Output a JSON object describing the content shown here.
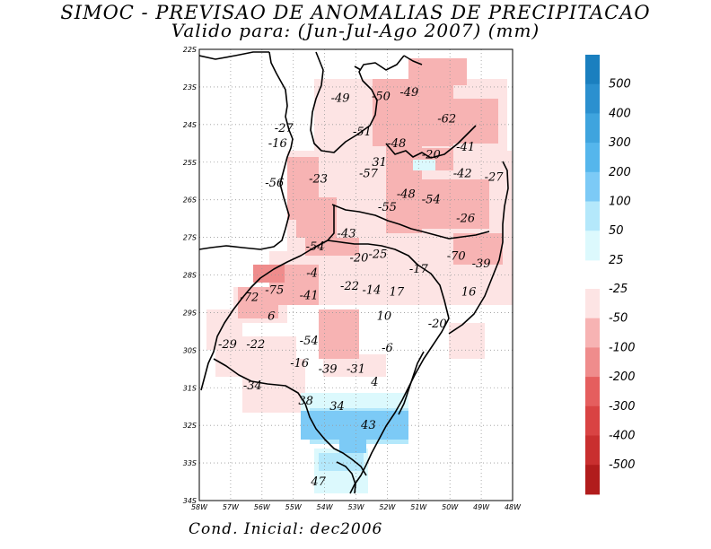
{
  "title_line1": "SIMOC - PREVISAO DE ANOMALIAS DE PRECIPITACAO",
  "title_line2": "Valido para: (Jun-Jul-Ago 2007) (mm)",
  "footer": "Cond. Inicial: dec2006",
  "map": {
    "lon_range": [
      -58,
      -48
    ],
    "lat_range": [
      -34,
      -22
    ],
    "lon_ticks": [
      "58W",
      "57W",
      "56W",
      "55W",
      "54W",
      "53W",
      "52W",
      "51W",
      "50W",
      "49W",
      "48W"
    ],
    "lat_ticks": [
      "22S",
      "23S",
      "24S",
      "25S",
      "26S",
      "27S",
      "28S",
      "29S",
      "30S",
      "31S",
      "32S",
      "33S",
      "34S"
    ],
    "grid": "dotted"
  },
  "legend": {
    "positive": [
      {
        "label": "500",
        "color": "#1a7fbf"
      },
      {
        "label": "400",
        "color": "#2b90cf"
      },
      {
        "label": "300",
        "color": "#3fa4de"
      },
      {
        "label": "200",
        "color": "#55b6ec"
      },
      {
        "label": "100",
        "color": "#7ccaf6"
      },
      {
        "label": "50",
        "color": "#b4e8fb"
      },
      {
        "label": "25",
        "color": "#dcf9fd"
      }
    ],
    "negative": [
      {
        "label": "-25",
        "color": "#fde4e4"
      },
      {
        "label": "-50",
        "color": "#f7b3b3"
      },
      {
        "label": "-100",
        "color": "#ef8c8c"
      },
      {
        "label": "-200",
        "color": "#e55e5e"
      },
      {
        "label": "-300",
        "color": "#d94343"
      },
      {
        "label": "-400",
        "color": "#c92f2f"
      },
      {
        "label": "-500",
        "color": "#b11c1c"
      }
    ]
  },
  "values": [
    {
      "v": "-49",
      "lon": -53.5,
      "lat": -23.3
    },
    {
      "v": "-50",
      "lon": -52.2,
      "lat": -23.25
    },
    {
      "v": "-49",
      "lon": -51.3,
      "lat": -23.15
    },
    {
      "v": "-62",
      "lon": -50.1,
      "lat": -23.85
    },
    {
      "v": "-27",
      "lon": -55.3,
      "lat": -24.1
    },
    {
      "v": "-51",
      "lon": -52.8,
      "lat": -24.2
    },
    {
      "v": "-16",
      "lon": -55.5,
      "lat": -24.5
    },
    {
      "v": "-48",
      "lon": -51.7,
      "lat": -24.5
    },
    {
      "v": "-41",
      "lon": -49.5,
      "lat": -24.6
    },
    {
      "v": "-20",
      "lon": -50.6,
      "lat": -24.8
    },
    {
      "v": "31",
      "lon": -52.25,
      "lat": -25.0
    },
    {
      "v": "-42",
      "lon": -49.6,
      "lat": -25.3
    },
    {
      "v": "-27",
      "lon": -48.6,
      "lat": -25.4
    },
    {
      "v": "-57",
      "lon": -52.6,
      "lat": -25.3
    },
    {
      "v": "-56",
      "lon": -55.6,
      "lat": -25.55
    },
    {
      "v": "-23",
      "lon": -54.2,
      "lat": -25.45
    },
    {
      "v": "-48",
      "lon": -51.4,
      "lat": -25.85
    },
    {
      "v": "-54",
      "lon": -50.6,
      "lat": -26.0
    },
    {
      "v": "-55",
      "lon": -52.0,
      "lat": -26.2
    },
    {
      "v": "-26",
      "lon": -49.5,
      "lat": -26.5
    },
    {
      "v": "-43",
      "lon": -53.3,
      "lat": -26.9
    },
    {
      "v": "-54",
      "lon": -54.3,
      "lat": -27.25
    },
    {
      "v": "-25",
      "lon": -52.3,
      "lat": -27.45
    },
    {
      "v": "-20",
      "lon": -52.9,
      "lat": -27.55
    },
    {
      "v": "-70",
      "lon": -49.8,
      "lat": -27.5
    },
    {
      "v": "-39",
      "lon": -49.0,
      "lat": -27.7
    },
    {
      "v": "-17",
      "lon": -51.0,
      "lat": -27.85
    },
    {
      "v": "-4",
      "lon": -54.4,
      "lat": -27.95
    },
    {
      "v": "-75",
      "lon": -55.6,
      "lat": -28.4
    },
    {
      "v": "-72",
      "lon": -56.4,
      "lat": -28.6
    },
    {
      "v": "-22",
      "lon": -53.2,
      "lat": -28.3
    },
    {
      "v": "-14",
      "lon": -52.5,
      "lat": -28.4
    },
    {
      "v": "-41",
      "lon": -54.5,
      "lat": -28.55
    },
    {
      "v": "17",
      "lon": -51.7,
      "lat": -28.45
    },
    {
      "v": "16",
      "lon": -49.4,
      "lat": -28.45
    },
    {
      "v": "6",
      "lon": -55.7,
      "lat": -29.1
    },
    {
      "v": "10",
      "lon": -52.1,
      "lat": -29.1
    },
    {
      "v": "-20",
      "lon": -50.4,
      "lat": -29.3
    },
    {
      "v": "-54",
      "lon": -54.5,
      "lat": -29.75
    },
    {
      "v": "-29",
      "lon": -57.1,
      "lat": -29.85
    },
    {
      "v": "-22",
      "lon": -56.2,
      "lat": -29.85
    },
    {
      "v": "-6",
      "lon": -52.0,
      "lat": -29.95
    },
    {
      "v": "-16",
      "lon": -54.8,
      "lat": -30.35
    },
    {
      "v": "-39",
      "lon": -53.9,
      "lat": -30.5
    },
    {
      "v": "-31",
      "lon": -53.0,
      "lat": -30.5
    },
    {
      "v": "-34",
      "lon": -56.3,
      "lat": -30.95
    },
    {
      "v": "4",
      "lon": -52.4,
      "lat": -30.85
    },
    {
      "v": "38",
      "lon": -54.6,
      "lat": -31.35
    },
    {
      "v": "34",
      "lon": -53.6,
      "lat": -31.5
    },
    {
      "v": "43",
      "lon": -52.6,
      "lat": -32.0
    },
    {
      "v": "47",
      "lon": -54.2,
      "lat": -33.5
    }
  ]
}
